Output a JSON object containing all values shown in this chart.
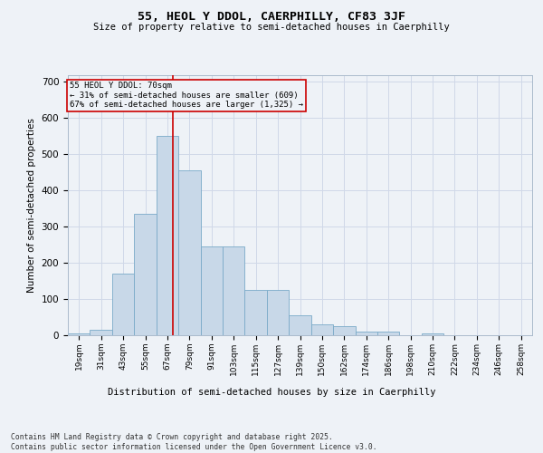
{
  "title1": "55, HEOL Y DDOL, CAERPHILLY, CF83 3JF",
  "title2": "Size of property relative to semi-detached houses in Caerphilly",
  "xlabel": "Distribution of semi-detached houses by size in Caerphilly",
  "ylabel": "Number of semi-detached properties",
  "bar_color": "#c8d8e8",
  "bar_edge_color": "#7aaac8",
  "grid_color": "#d0d8e8",
  "annotation_box_color": "#cc0000",
  "property_line_color": "#cc0000",
  "property_size": 70,
  "annotation_text_line1": "55 HEOL Y DDOL: 70sqm",
  "annotation_text_line2": "← 31% of semi-detached houses are smaller (609)",
  "annotation_text_line3": "67% of semi-detached houses are larger (1,325) →",
  "categories": [
    "19sqm",
    "31sqm",
    "43sqm",
    "55sqm",
    "67sqm",
    "79sqm",
    "91sqm",
    "103sqm",
    "115sqm",
    "127sqm",
    "139sqm",
    "150sqm",
    "162sqm",
    "174sqm",
    "186sqm",
    "198sqm",
    "210sqm",
    "222sqm",
    "234sqm",
    "246sqm",
    "258sqm"
  ],
  "bin_edges": [
    13,
    25,
    37,
    49,
    61,
    73,
    85,
    97,
    109,
    121,
    133,
    145,
    157,
    169,
    181,
    193,
    205,
    217,
    229,
    241,
    253,
    265
  ],
  "values": [
    5,
    15,
    170,
    335,
    550,
    455,
    245,
    245,
    125,
    125,
    55,
    30,
    25,
    10,
    10,
    0,
    5,
    0,
    0,
    0,
    0
  ],
  "ylim": [
    0,
    720
  ],
  "yticks": [
    0,
    100,
    200,
    300,
    400,
    500,
    600,
    700
  ],
  "footer": "Contains HM Land Registry data © Crown copyright and database right 2025.\nContains public sector information licensed under the Open Government Licence v3.0.",
  "background_color": "#eef2f7"
}
